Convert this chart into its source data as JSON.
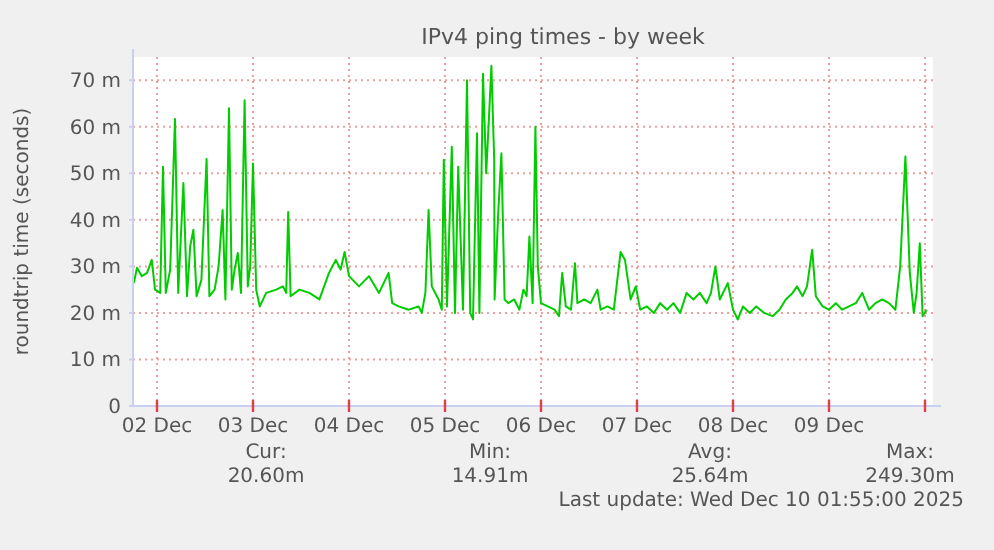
{
  "chart_data": {
    "type": "line",
    "title": "IPv4 ping times - by week",
    "ylabel": "roundtrip time (seconds)",
    "xlim": [
      "2025-12-01T18:00",
      "2025-12-10T02:00"
    ],
    "xticks": [
      {
        "value": "2025-12-02",
        "label": "02 Dec"
      },
      {
        "value": "2025-12-03",
        "label": "03 Dec"
      },
      {
        "value": "2025-12-04",
        "label": "04 Dec"
      },
      {
        "value": "2025-12-05",
        "label": "05 Dec"
      },
      {
        "value": "2025-12-06",
        "label": "06 Dec"
      },
      {
        "value": "2025-12-07",
        "label": "07 Dec"
      },
      {
        "value": "2025-12-08",
        "label": "08 Dec"
      },
      {
        "value": "2025-12-09",
        "label": "09 Dec"
      },
      {
        "value": "2025-12-10",
        "label": null
      }
    ],
    "ylim": [
      0,
      75
    ],
    "yticks": [
      {
        "value": 0,
        "label": "0"
      },
      {
        "value": 10,
        "label": "10 m"
      },
      {
        "value": 20,
        "label": "20 m"
      },
      {
        "value": 30,
        "label": "30 m"
      },
      {
        "value": 40,
        "label": "40 m"
      },
      {
        "value": 50,
        "label": "50 m"
      },
      {
        "value": 60,
        "label": "60 m"
      },
      {
        "value": 70,
        "label": "70 m"
      }
    ],
    "grid": true,
    "annotations": [
      "Cur:",
      "20.60m",
      "Min:",
      "14.91m",
      "Avg:",
      "25.64m",
      "Max:",
      "249.30m",
      "Last update: Wed Dec 10 01:55:00 2025"
    ],
    "series": [
      {
        "color": "#00cc00",
        "x": [
          "2025-12-01T18:12",
          "2025-12-01T19:00",
          "2025-12-01T20:12",
          "2025-12-01T21:30",
          "2025-12-01T22:42",
          "2025-12-01T23:30",
          "2025-12-02T00:48",
          "2025-12-02T01:30",
          "2025-12-02T02:12",
          "2025-12-02T03:18",
          "2025-12-02T04:30",
          "2025-12-02T05:18",
          "2025-12-02T06:36",
          "2025-12-02T07:30",
          "2025-12-02T08:18",
          "2025-12-02T09:06",
          "2025-12-02T09:54",
          "2025-12-02T11:06",
          "2025-12-02T12:24",
          "2025-12-02T13:06",
          "2025-12-02T14:24",
          "2025-12-02T15:24",
          "2025-12-02T16:24",
          "2025-12-02T17:06",
          "2025-12-02T18:00",
          "2025-12-02T18:42",
          "2025-12-02T19:24",
          "2025-12-02T20:12",
          "2025-12-02T21:00",
          "2025-12-02T21:54",
          "2025-12-02T22:42",
          "2025-12-02T23:18",
          "2025-12-03T00:00",
          "2025-12-03T00:48",
          "2025-12-03T01:42",
          "2025-12-03T03:18",
          "2025-12-03T05:48",
          "2025-12-03T07:30",
          "2025-12-03T08:18",
          "2025-12-03T08:48",
          "2025-12-03T09:24",
          "2025-12-03T11:36",
          "2025-12-03T14:06",
          "2025-12-03T16:36",
          "2025-12-03T19:00",
          "2025-12-03T20:42",
          "2025-12-03T21:54",
          "2025-12-03T22:54",
          "2025-12-04T00:00",
          "2025-12-04T02:30",
          "2025-12-04T05:00",
          "2025-12-04T07:30",
          "2025-12-04T09:54",
          "2025-12-04T10:48",
          "2025-12-04T12:24",
          "2025-12-04T14:54",
          "2025-12-04T17:24",
          "2025-12-04T18:12",
          "2025-12-04T19:06",
          "2025-12-04T19:54",
          "2025-12-04T20:42",
          "2025-12-04T22:24",
          "2025-12-04T23:12",
          "2025-12-04T23:42",
          "2025-12-05T00:30",
          "2025-12-05T01:42",
          "2025-12-05T02:30",
          "2025-12-05T03:18",
          "2025-12-05T04:30",
          "2025-12-05T05:30",
          "2025-12-05T06:18",
          "2025-12-05T07:00",
          "2025-12-05T08:00",
          "2025-12-05T08:36",
          "2025-12-05T09:30",
          "2025-12-05T10:18",
          "2025-12-05T11:00",
          "2025-12-05T11:36",
          "2025-12-05T12:18",
          "2025-12-05T12:24",
          "2025-12-05T13:18",
          "2025-12-05T14:06",
          "2025-12-05T14:54",
          "2025-12-05T15:48",
          "2025-12-05T17:18",
          "2025-12-05T18:36",
          "2025-12-05T19:36",
          "2025-12-05T20:24",
          "2025-12-05T21:06",
          "2025-12-05T21:54",
          "2025-12-05T22:36",
          "2025-12-05T23:12",
          "2025-12-06T00:00",
          "2025-12-06T01:42",
          "2025-12-06T03:24",
          "2025-12-06T04:30",
          "2025-12-06T05:18",
          "2025-12-06T06:12",
          "2025-12-06T07:30",
          "2025-12-06T08:30",
          "2025-12-06T09:06",
          "2025-12-06T10:48",
          "2025-12-06T12:24",
          "2025-12-06T14:06",
          "2025-12-06T14:54",
          "2025-12-06T16:36",
          "2025-12-06T18:12",
          "2025-12-06T19:54",
          "2025-12-06T21:00",
          "2025-12-06T22:24",
          "2025-12-06T23:42",
          "2025-12-07T00:48",
          "2025-12-07T02:30",
          "2025-12-07T04:12",
          "2025-12-07T05:48",
          "2025-12-07T07:30",
          "2025-12-07T09:06",
          "2025-12-07T10:48",
          "2025-12-07T12:24",
          "2025-12-07T14:06",
          "2025-12-07T15:42",
          "2025-12-07T17:24",
          "2025-12-07T18:30",
          "2025-12-07T19:36",
          "2025-12-07T20:42",
          "2025-12-07T22:42",
          "2025-12-08T00:00",
          "2025-12-08T01:12",
          "2025-12-08T02:30",
          "2025-12-08T04:12",
          "2025-12-08T05:48",
          "2025-12-08T07:48",
          "2025-12-08T09:54",
          "2025-12-08T11:36",
          "2025-12-08T13:12",
          "2025-12-08T14:54",
          "2025-12-08T16:00",
          "2025-12-08T17:24",
          "2025-12-08T18:30",
          "2025-12-08T19:48",
          "2025-12-08T20:42",
          "2025-12-08T22:24",
          "2025-12-09T00:00",
          "2025-12-09T01:42",
          "2025-12-09T03:18",
          "2025-12-09T05:00",
          "2025-12-09T06:42",
          "2025-12-09T08:18",
          "2025-12-09T10:00",
          "2025-12-09T11:36",
          "2025-12-09T13:18",
          "2025-12-09T15:00",
          "2025-12-09T16:36",
          "2025-12-09T17:48",
          "2025-12-09T19:06",
          "2025-12-09T20:12",
          "2025-12-09T21:12",
          "2025-12-09T21:54",
          "2025-12-09T22:42",
          "2025-12-09T23:24",
          "2025-12-10T00:24"
        ],
        "values": [
          26.4,
          29.7,
          27.9,
          28.6,
          31.4,
          25,
          24.3,
          51.4,
          24.3,
          29.3,
          61.7,
          24.3,
          47.9,
          23.6,
          34.3,
          37.9,
          23.6,
          27.1,
          53.1,
          23.6,
          25,
          30,
          42.1,
          22.9,
          64,
          25,
          29.3,
          32.9,
          24.3,
          65.7,
          25.7,
          30,
          52.1,
          25,
          21.4,
          24.3,
          25,
          25.7,
          24.3,
          41.7,
          23.6,
          25,
          24.3,
          22.9,
          28.6,
          31.4,
          29.3,
          33.1,
          27.9,
          25.7,
          27.9,
          24.3,
          28.6,
          22.1,
          21.4,
          20.7,
          21.4,
          20,
          24.3,
          42.1,
          25.7,
          22.9,
          20.7,
          52.9,
          21.4,
          55.7,
          20,
          51.4,
          20.7,
          70,
          20,
          18.6,
          58.6,
          20,
          71.4,
          50,
          62.1,
          73.1,
          52.9,
          22.9,
          41.4,
          54.3,
          22.9,
          22.1,
          22.9,
          20.7,
          25,
          23.6,
          36.4,
          22.1,
          60,
          30,
          22.1,
          21.4,
          20.7,
          19.3,
          28.6,
          21.4,
          20.7,
          30.7,
          22.1,
          22.9,
          22.1,
          25,
          20.7,
          21.4,
          20.7,
          33.1,
          31.4,
          22.9,
          25.7,
          20.7,
          21.4,
          20,
          22.1,
          20.7,
          22.1,
          20,
          24.3,
          22.9,
          24.3,
          22.1,
          24.3,
          30,
          22.9,
          26.4,
          20.7,
          18.6,
          21.4,
          20,
          21.4,
          20,
          19.3,
          20.7,
          22.9,
          24.3,
          25.7,
          23.6,
          25.7,
          33.6,
          23.6,
          21.4,
          20.7,
          22.1,
          20.7,
          21.4,
          22.1,
          24.3,
          20.7,
          22.1,
          22.9,
          22.1,
          20.7,
          30,
          53.6,
          28.6,
          20,
          24.3,
          35,
          19.3,
          20.7
        ]
      }
    ]
  }
}
